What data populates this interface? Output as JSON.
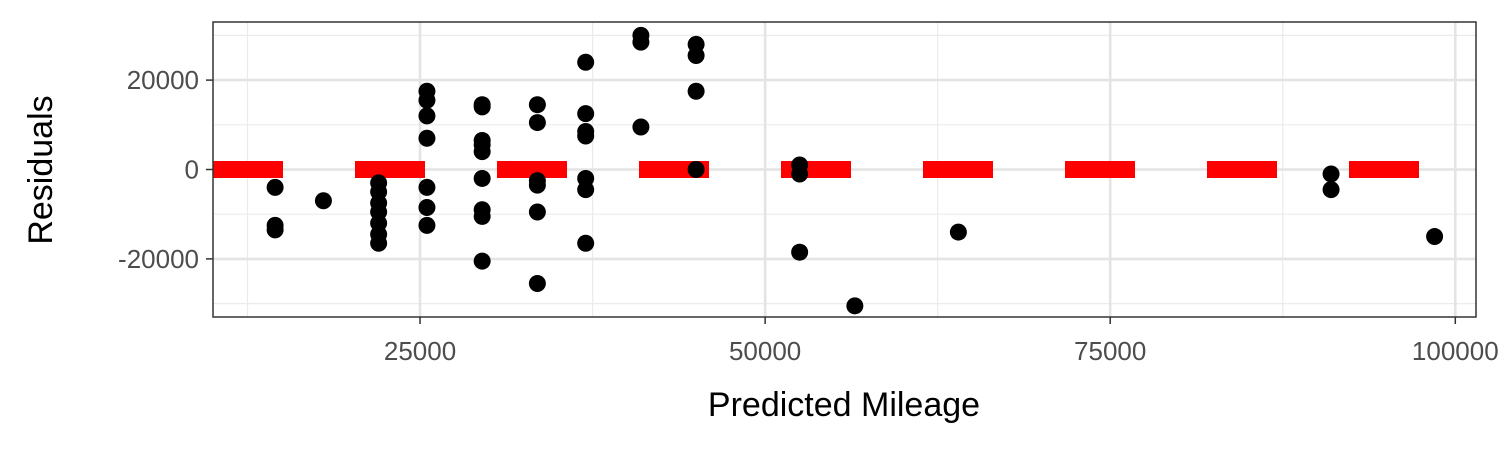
{
  "chart_data": {
    "type": "scatter",
    "title": "",
    "xlabel": "Predicted Mileage",
    "ylabel": "Residuals",
    "xlim": [
      10000,
      101500
    ],
    "ylim": [
      -33000,
      33000
    ],
    "x_ticks": [
      25000,
      50000,
      75000,
      100000
    ],
    "x_tick_labels": [
      "25000",
      "50000",
      "75000",
      "100000"
    ],
    "y_ticks": [
      -20000,
      0,
      20000
    ],
    "y_tick_labels": [
      "-20000",
      "0",
      "20000"
    ],
    "grid": true,
    "legend": "none",
    "point_color": "#000000",
    "reference_line": {
      "y": 0,
      "style": "dashed",
      "color": "#ff0000"
    },
    "points": [
      {
        "x": 14500,
        "y": -4000
      },
      {
        "x": 14500,
        "y": -12500
      },
      {
        "x": 14500,
        "y": -13500
      },
      {
        "x": 18000,
        "y": -7000
      },
      {
        "x": 22000,
        "y": -3000
      },
      {
        "x": 22000,
        "y": -5000
      },
      {
        "x": 22000,
        "y": -7500
      },
      {
        "x": 22000,
        "y": -9500
      },
      {
        "x": 22000,
        "y": -12000
      },
      {
        "x": 22000,
        "y": -14500
      },
      {
        "x": 22000,
        "y": -16500
      },
      {
        "x": 25500,
        "y": 17500
      },
      {
        "x": 25500,
        "y": 15500
      },
      {
        "x": 25500,
        "y": 12000
      },
      {
        "x": 25500,
        "y": 7000
      },
      {
        "x": 25500,
        "y": -4000
      },
      {
        "x": 25500,
        "y": -8500
      },
      {
        "x": 25500,
        "y": -12500
      },
      {
        "x": 29500,
        "y": 14500
      },
      {
        "x": 29500,
        "y": 14000
      },
      {
        "x": 29500,
        "y": 6500
      },
      {
        "x": 29500,
        "y": 5500
      },
      {
        "x": 29500,
        "y": 4000
      },
      {
        "x": 29500,
        "y": -2000
      },
      {
        "x": 29500,
        "y": -9000
      },
      {
        "x": 29500,
        "y": -10500
      },
      {
        "x": 29500,
        "y": -20500
      },
      {
        "x": 33500,
        "y": 14500
      },
      {
        "x": 33500,
        "y": 10500
      },
      {
        "x": 33500,
        "y": -2500
      },
      {
        "x": 33500,
        "y": -3500
      },
      {
        "x": 33500,
        "y": -9500
      },
      {
        "x": 33500,
        "y": -25500
      },
      {
        "x": 37000,
        "y": 24000
      },
      {
        "x": 37000,
        "y": 12500
      },
      {
        "x": 37000,
        "y": 8500
      },
      {
        "x": 37000,
        "y": 7500
      },
      {
        "x": 37000,
        "y": -2000
      },
      {
        "x": 37000,
        "y": -4500
      },
      {
        "x": 37000,
        "y": -16500
      },
      {
        "x": 41000,
        "y": 30000
      },
      {
        "x": 41000,
        "y": 28500
      },
      {
        "x": 41000,
        "y": 9500
      },
      {
        "x": 45000,
        "y": 28000
      },
      {
        "x": 45000,
        "y": 25500
      },
      {
        "x": 45000,
        "y": 17500
      },
      {
        "x": 45000,
        "y": 0
      },
      {
        "x": 52500,
        "y": 1000
      },
      {
        "x": 52500,
        "y": -1000
      },
      {
        "x": 52500,
        "y": -18500
      },
      {
        "x": 56500,
        "y": -30500
      },
      {
        "x": 64000,
        "y": -14000
      },
      {
        "x": 91000,
        "y": -1000
      },
      {
        "x": 91000,
        "y": -4500
      },
      {
        "x": 98500,
        "y": -15000
      }
    ]
  }
}
